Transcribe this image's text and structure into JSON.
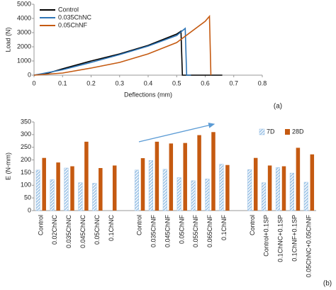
{
  "chart_data": [
    {
      "type": "line",
      "annotation": "(a)",
      "x_label": "Deflections (mm)",
      "y_label": "Load (N)",
      "xlim": [
        0,
        0.8
      ],
      "xticks": [
        0,
        0.1,
        0.2,
        0.3,
        0.4,
        0.5,
        0.6,
        0.7,
        0.8
      ],
      "ylim": [
        0,
        5000
      ],
      "yticks": [
        0,
        1000,
        2000,
        3000,
        4000,
        5000
      ],
      "grid": false,
      "legend": "top-left",
      "series": [
        {
          "name": "Control",
          "color": "#000000",
          "x": [
            0,
            0.05,
            0.1,
            0.2,
            0.3,
            0.4,
            0.5,
            0.515,
            0.52,
            0.66
          ],
          "values": [
            0,
            150,
            450,
            1000,
            1500,
            2100,
            2900,
            3100,
            0,
            0
          ]
        },
        {
          "name": "0.035ChNC",
          "color": "#2e75b6",
          "x": [
            0,
            0.1,
            0.2,
            0.3,
            0.4,
            0.5,
            0.53,
            0.535,
            0.55
          ],
          "values": [
            0,
            380,
            900,
            1450,
            2050,
            2800,
            3300,
            0,
            0
          ]
        },
        {
          "name": "0.05ChNF",
          "color": "#c55a11",
          "x": [
            0,
            0.1,
            0.2,
            0.3,
            0.4,
            0.5,
            0.6,
            0.615,
            0.62
          ],
          "values": [
            0,
            150,
            500,
            900,
            1500,
            2300,
            3800,
            4150,
            0
          ]
        }
      ]
    },
    {
      "type": "bar",
      "annotation": "(b)",
      "y_label": "E (N-mm)",
      "ylim": [
        0,
        350
      ],
      "yticks": [
        0,
        50,
        100,
        150,
        200,
        250,
        300,
        350
      ],
      "grid": false,
      "legend": "top-right",
      "categories": [
        "Control",
        "0.02ChNC",
        "0.035ChNC",
        "0.045ChNC",
        "0.05ChNC",
        "0.1ChNC",
        null,
        "Control",
        "0.035ChNF",
        "0.045ChNF",
        "0.05ChNF",
        "0.055ChNF",
        "0.065ChNF",
        "0.1ChNF",
        null,
        "Control",
        "Control+0.1SP",
        "0.1ChNC+0.1SP",
        "0.1ChNF+0.1SP",
        "0.05ChNC+0.05ChNF"
      ],
      "series": [
        {
          "name": "7D",
          "color": "#9dc3e6",
          "pattern": "hatch",
          "values": [
            160,
            122,
            168,
            110,
            108,
            null,
            null,
            160,
            198,
            163,
            130,
            118,
            125,
            183,
            null,
            162,
            110,
            170,
            148,
            112
          ]
        },
        {
          "name": "28D",
          "color": "#c55a11",
          "values": [
            208,
            190,
            175,
            272,
            168,
            178,
            null,
            207,
            272,
            265,
            267,
            298,
            310,
            180,
            null,
            208,
            178,
            175,
            248,
            222
          ]
        }
      ]
    }
  ]
}
